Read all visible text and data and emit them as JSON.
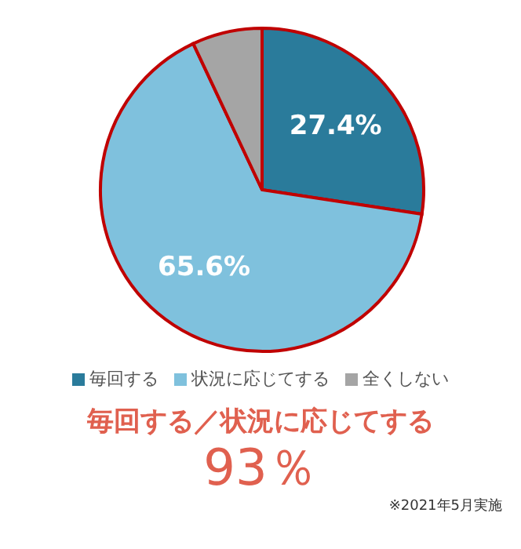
{
  "chart_data": {
    "type": "pie",
    "categories": [
      "毎回する",
      "状況に応じてする",
      "全くしない"
    ],
    "values": [
      27.4,
      65.6,
      7.0
    ],
    "colors": [
      "#2a7b9b",
      "#7fc1dd",
      "#a5a5a5"
    ],
    "value_labels": [
      "27.4%",
      "65.6%",
      null
    ],
    "legend": "bottom",
    "annotations": [
      "毎回する／状況に応じてする",
      "93％",
      "※2021年5月実施"
    ]
  }
}
